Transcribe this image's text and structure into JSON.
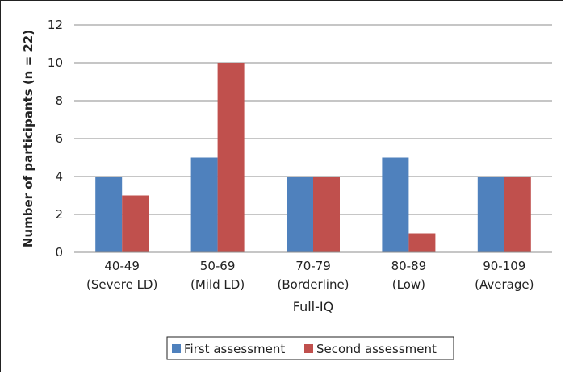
{
  "chart_data": {
    "type": "bar",
    "xlabel": "Full-IQ",
    "ylabel": "Number of participants (n = 22)",
    "ylim": [
      0,
      12
    ],
    "yticks": [
      0,
      2,
      4,
      6,
      8,
      10,
      12
    ],
    "grid": true,
    "legend_position": "bottom",
    "categories": [
      {
        "line1": "40-49",
        "line2": "(Severe LD)"
      },
      {
        "line1": "50-69",
        "line2": "(Mild LD)"
      },
      {
        "line1": "70-79",
        "line2": "(Borderline)"
      },
      {
        "line1": "80-89",
        "line2": "(Low)"
      },
      {
        "line1": "90-109",
        "line2": "(Average)"
      }
    ],
    "series": [
      {
        "name": "First assessment",
        "color": "#4f81bd",
        "values": [
          4,
          5,
          4,
          5,
          4
        ]
      },
      {
        "name": "Second assessment",
        "color": "#c0504d",
        "values": [
          3,
          10,
          4,
          1,
          4
        ]
      }
    ]
  }
}
